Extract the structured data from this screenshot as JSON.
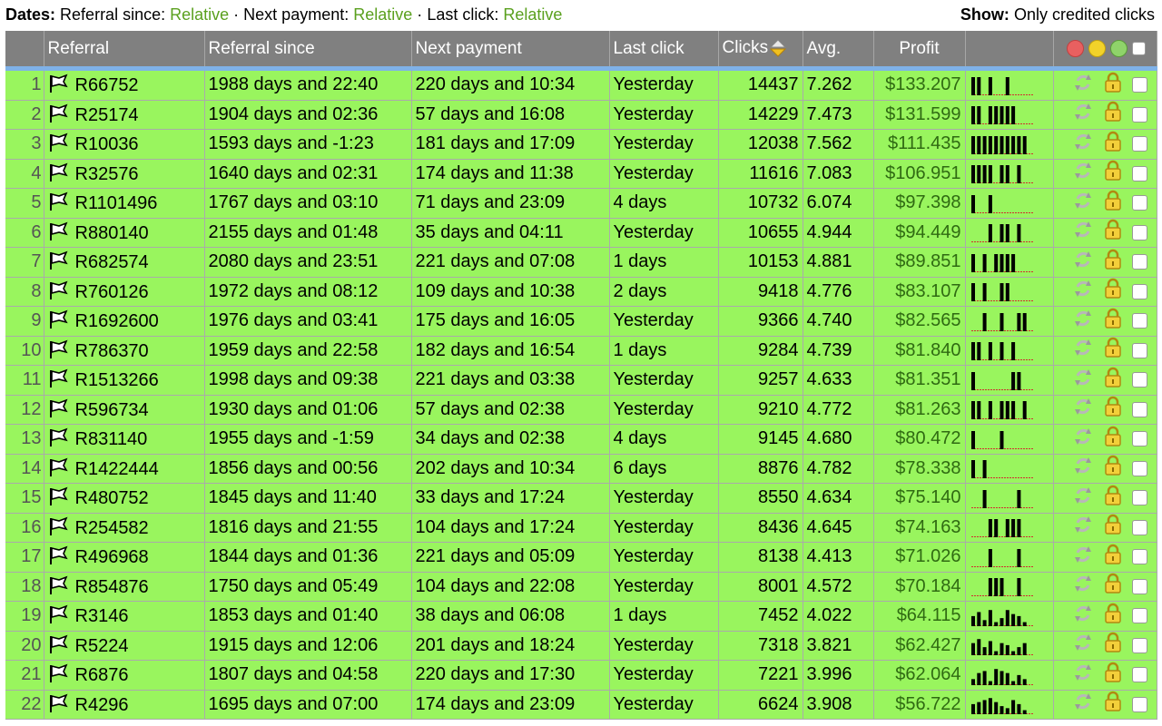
{
  "topbar": {
    "dates_label": "Dates:",
    "referral_since_label": "Referral since:",
    "next_payment_label": "Next payment:",
    "last_click_label": "Last click:",
    "relative_text": "Relative",
    "separator": "·",
    "show_label": "Show:",
    "show_value": "Only credited clicks"
  },
  "headers": {
    "referral": "Referral",
    "referral_since": "Referral since",
    "next_payment": "Next payment",
    "last_click": "Last click",
    "clicks": "Clicks",
    "avg": "Avg.",
    "profit": "Profit"
  },
  "colors": {
    "dot_red": "#e86060",
    "dot_yellow": "#f2d22a",
    "dot_green": "#8fd36a",
    "row_bg": "#99f55e",
    "header_bg": "#808080"
  },
  "rows": [
    {
      "n": "1",
      "id": "R66752",
      "since": "1988 days and 22:40",
      "next": "220 days and 10:34",
      "last": "Yesterday",
      "clicks": "14437",
      "avg": "7.262",
      "profit": "$133.207",
      "bars": [
        9,
        9,
        0,
        9,
        0,
        0,
        9,
        0,
        0,
        0
      ]
    },
    {
      "n": "2",
      "id": "R25174",
      "since": "1904 days and 02:36",
      "next": "57 days and 16:08",
      "last": "Yesterday",
      "clicks": "14229",
      "avg": "7.473",
      "profit": "$131.599",
      "bars": [
        9,
        9,
        0,
        9,
        9,
        9,
        9,
        9,
        0,
        0
      ]
    },
    {
      "n": "3",
      "id": "R10036",
      "since": "1593 days and -1:23",
      "next": "181 days and 17:09",
      "last": "Yesterday",
      "clicks": "12038",
      "avg": "7.562",
      "profit": "$111.435",
      "bars": [
        9,
        9,
        9,
        9,
        9,
        9,
        9,
        9,
        9,
        9
      ]
    },
    {
      "n": "4",
      "id": "R32576",
      "since": "1640 days and 02:31",
      "next": "174 days and 11:38",
      "last": "Yesterday",
      "clicks": "11616",
      "avg": "7.083",
      "profit": "$106.951",
      "bars": [
        9,
        9,
        9,
        9,
        0,
        9,
        9,
        0,
        9,
        0
      ]
    },
    {
      "n": "5",
      "id": "R1101496",
      "since": "1767 days and 03:10",
      "next": "71 days and 23:09",
      "last": "4 days",
      "clicks": "10732",
      "avg": "6.074",
      "profit": "$97.398",
      "bars": [
        9,
        0,
        0,
        9,
        0,
        0,
        0,
        0,
        0,
        0
      ]
    },
    {
      "n": "6",
      "id": "R880140",
      "since": "2155 days and 01:48",
      "next": "35 days and 04:11",
      "last": "Yesterday",
      "clicks": "10655",
      "avg": "4.944",
      "profit": "$94.449",
      "bars": [
        0,
        0,
        0,
        9,
        0,
        9,
        9,
        0,
        9,
        0
      ]
    },
    {
      "n": "7",
      "id": "R682574",
      "since": "2080 days and 23:51",
      "next": "221 days and 07:08",
      "last": "1 days",
      "clicks": "10153",
      "avg": "4.881",
      "profit": "$89.851",
      "bars": [
        9,
        0,
        9,
        0,
        9,
        9,
        9,
        9,
        0,
        0
      ]
    },
    {
      "n": "8",
      "id": "R760126",
      "since": "1972 days and 08:12",
      "next": "109 days and 10:38",
      "last": "2 days",
      "clicks": "9418",
      "avg": "4.776",
      "profit": "$83.107",
      "bars": [
        9,
        0,
        9,
        0,
        0,
        9,
        9,
        0,
        0,
        0
      ]
    },
    {
      "n": "9",
      "id": "R1692600",
      "since": "1976 days and 03:41",
      "next": "175 days and 16:05",
      "last": "Yesterday",
      "clicks": "9366",
      "avg": "4.740",
      "profit": "$82.565",
      "bars": [
        0,
        0,
        9,
        0,
        0,
        9,
        0,
        0,
        9,
        9
      ]
    },
    {
      "n": "10",
      "id": "R786370",
      "since": "1959 days and 22:58",
      "next": "182 days and 16:54",
      "last": "1 days",
      "clicks": "9284",
      "avg": "4.739",
      "profit": "$81.840",
      "bars": [
        9,
        9,
        0,
        9,
        0,
        9,
        0,
        9,
        0,
        0
      ]
    },
    {
      "n": "11",
      "id": "R1513266",
      "since": "1998 days and 09:38",
      "next": "221 days and 03:38",
      "last": "Yesterday",
      "clicks": "9257",
      "avg": "4.633",
      "profit": "$81.351",
      "bars": [
        9,
        0,
        0,
        0,
        0,
        0,
        0,
        9,
        9,
        0
      ]
    },
    {
      "n": "12",
      "id": "R596734",
      "since": "1930 days and 01:06",
      "next": "57 days and 02:38",
      "last": "Yesterday",
      "clicks": "9210",
      "avg": "4.772",
      "profit": "$81.263",
      "bars": [
        9,
        9,
        0,
        9,
        0,
        9,
        9,
        9,
        0,
        9
      ]
    },
    {
      "n": "13",
      "id": "R831140",
      "since": "1955 days and -1:59",
      "next": "34 days and 02:38",
      "last": "4 days",
      "clicks": "9145",
      "avg": "4.680",
      "profit": "$80.472",
      "bars": [
        9,
        0,
        0,
        0,
        0,
        9,
        0,
        0,
        0,
        0
      ]
    },
    {
      "n": "14",
      "id": "R1422444",
      "since": "1856 days and 00:56",
      "next": "202 days and 10:34",
      "last": "6 days",
      "clicks": "8876",
      "avg": "4.782",
      "profit": "$78.338",
      "bars": [
        9,
        0,
        9,
        0,
        0,
        0,
        0,
        0,
        0,
        0
      ]
    },
    {
      "n": "15",
      "id": "R480752",
      "since": "1845 days and 11:40",
      "next": "33 days and 17:24",
      "last": "Yesterday",
      "clicks": "8550",
      "avg": "4.634",
      "profit": "$75.140",
      "bars": [
        0,
        0,
        9,
        0,
        0,
        0,
        0,
        0,
        9,
        0
      ]
    },
    {
      "n": "16",
      "id": "R254582",
      "since": "1816 days and 21:55",
      "next": "104 days and 17:24",
      "last": "Yesterday",
      "clicks": "8436",
      "avg": "4.645",
      "profit": "$74.163",
      "bars": [
        0,
        0,
        0,
        9,
        9,
        0,
        9,
        9,
        9,
        0
      ]
    },
    {
      "n": "17",
      "id": "R496968",
      "since": "1844 days and 01:36",
      "next": "221 days and 05:09",
      "last": "Yesterday",
      "clicks": "8138",
      "avg": "4.413",
      "profit": "$71.026",
      "bars": [
        0,
        0,
        0,
        9,
        0,
        0,
        0,
        0,
        9,
        0
      ]
    },
    {
      "n": "18",
      "id": "R854876",
      "since": "1750 days and 05:49",
      "next": "104 days and 22:08",
      "last": "Yesterday",
      "clicks": "8001",
      "avg": "4.572",
      "profit": "$70.184",
      "bars": [
        0,
        0,
        0,
        9,
        9,
        9,
        0,
        0,
        9,
        0
      ]
    },
    {
      "n": "19",
      "id": "R3146",
      "since": "1853 days and 01:40",
      "next": "38 days and 06:08",
      "last": "1 days",
      "clicks": "7452",
      "avg": "4.022",
      "profit": "$64.115",
      "bars": [
        5,
        7,
        3,
        8,
        2,
        4,
        8,
        6,
        5,
        2
      ]
    },
    {
      "n": "20",
      "id": "R5224",
      "since": "1915 days and 12:06",
      "next": "201 days and 18:24",
      "last": "Yesterday",
      "clicks": "7318",
      "avg": "3.821",
      "profit": "$62.427",
      "bars": [
        6,
        8,
        4,
        7,
        2,
        6,
        5,
        2,
        4,
        6
      ]
    },
    {
      "n": "21",
      "id": "R6876",
      "since": "1807 days and 04:58",
      "next": "220 days and 17:30",
      "last": "Yesterday",
      "clicks": "7221",
      "avg": "3.996",
      "profit": "$62.064",
      "bars": [
        3,
        6,
        7,
        2,
        8,
        7,
        6,
        2,
        5,
        3
      ]
    },
    {
      "n": "22",
      "id": "R4296",
      "since": "1695 days and 07:00",
      "next": "174 days and 23:09",
      "last": "Yesterday",
      "clicks": "6624",
      "avg": "3.908",
      "profit": "$56.722",
      "bars": [
        5,
        6,
        7,
        8,
        6,
        4,
        3,
        7,
        5,
        2
      ]
    }
  ]
}
